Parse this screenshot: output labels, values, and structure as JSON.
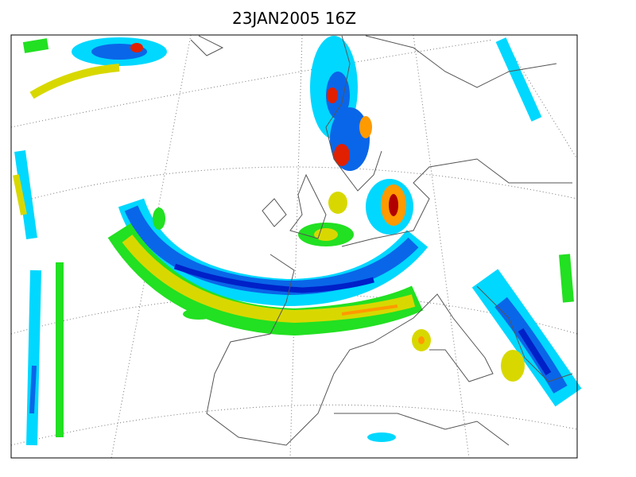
{
  "header": {
    "title": "23JAN2005 16Z"
  }
}
